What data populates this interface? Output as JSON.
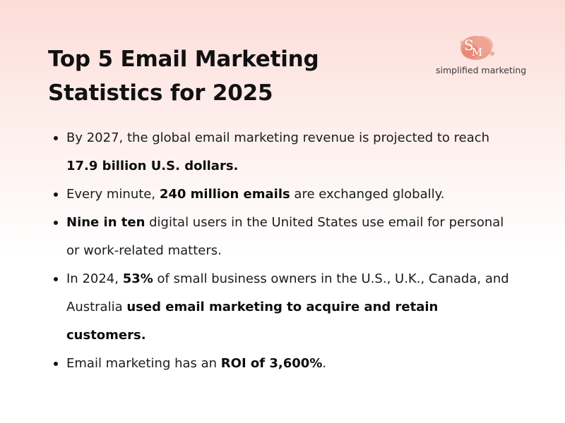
{
  "title": {
    "line1": "Top 5 Email Marketing",
    "line2": "Statistics for 2025"
  },
  "logo": {
    "monogram_s": "S",
    "monogram_m": "M",
    "text": "simplified marketing",
    "accent_color": "#e9907d"
  },
  "facts": [
    {
      "t1": "By 2027, the global email marketing revenue is projected to reach ",
      "b1": "17.9 billion U.S. dollars."
    },
    {
      "t1": "Every minute, ",
      "b1": "240 million emails",
      "t2": " are exchanged globally."
    },
    {
      "b1": "Nine in ten",
      "t1": " digital users in the United States use email for personal or work-related matters."
    },
    {
      "t1": "In 2024, ",
      "b1": "53%",
      "t2": " of small business owners in the U.S., U.K., Canada, and Australia ",
      "b2": "used email marketing to acquire and retain customers."
    },
    {
      "t1": "Email marketing has an ",
      "b1": "ROI of 3,600%",
      "t2": "."
    }
  ],
  "colors": {
    "background_top": "#fddcd7",
    "background_bottom": "#ffffff",
    "text": "#111111"
  }
}
